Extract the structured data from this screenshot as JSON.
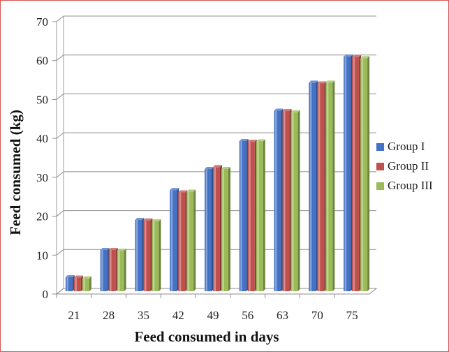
{
  "chart_data": {
    "type": "bar",
    "style": "3d-clustered-column",
    "title": "",
    "xlabel": "Feed consumed in days",
    "ylabel": "Feed consumed (kg)",
    "categories": [
      "21",
      "28",
      "35",
      "42",
      "49",
      "56",
      "63",
      "70",
      "75"
    ],
    "ylim": [
      0,
      70
    ],
    "yticks": [
      "0",
      "10",
      "20",
      "30",
      "40",
      "50",
      "60",
      "70"
    ],
    "grid": true,
    "legend_position": "right",
    "series": [
      {
        "name": "Group I",
        "color": "#4472c4",
        "values": [
          3.6,
          10.6,
          18.3,
          26.0,
          31.4,
          38.6,
          46.4,
          53.6,
          60.3
        ]
      },
      {
        "name": "Group II",
        "color": "#c0504d",
        "values": [
          3.5,
          10.6,
          18.2,
          25.4,
          31.9,
          38.4,
          46.3,
          53.4,
          60.2
        ]
      },
      {
        "name": "Group III",
        "color": "#9bbb59",
        "values": [
          3.3,
          10.4,
          18.0,
          25.6,
          31.4,
          38.5,
          46.0,
          53.6,
          59.9
        ]
      }
    ]
  }
}
